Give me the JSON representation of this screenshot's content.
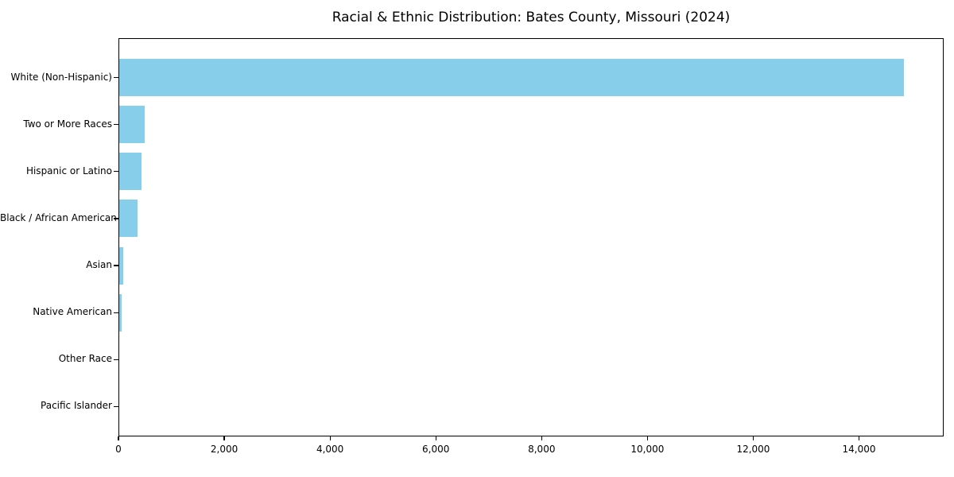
{
  "title": "Racial & Ethnic Distribution: Bates County, Missouri (2024)",
  "colors": {
    "bar": "#87CEEB",
    "text": "#000000",
    "spine": "#000000",
    "background": "#ffffff"
  },
  "chart_data": {
    "type": "bar",
    "orientation": "horizontal",
    "title": "Racial & Ethnic Distribution: Bates County, Missouri (2024)",
    "categories": [
      "White (Non-Hispanic)",
      "Two or More Races",
      "Hispanic or Latino",
      "Black / African American",
      "Asian",
      "Native American",
      "Other Race",
      "Pacific Islander"
    ],
    "values": [
      14840,
      475,
      420,
      350,
      70,
      50,
      0,
      0
    ],
    "xlabel": "",
    "ylabel": "",
    "xlim": [
      0,
      15600
    ],
    "x_ticks": [
      0,
      2000,
      4000,
      6000,
      8000,
      10000,
      12000,
      14000
    ],
    "x_tick_labels": [
      "0",
      "2,000",
      "4,000",
      "6,000",
      "8,000",
      "10,000",
      "12,000",
      "14,000"
    ],
    "bar_color": "#87CEEB",
    "grid": false,
    "legend": "none"
  }
}
